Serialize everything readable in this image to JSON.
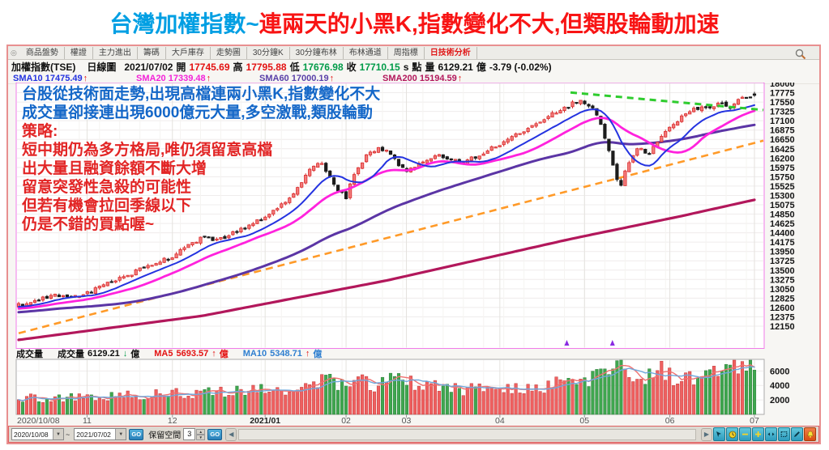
{
  "title": {
    "part1": "台灣加權指數~",
    "part2": "連兩天的小黑K,指數變化不大,但類股輪動加速"
  },
  "colors": {
    "title_blue": "#009FE3",
    "title_red": "#F81414",
    "up_red": "#D92B2B",
    "up_fill": "#F27979",
    "down_black": "#1C1C1C",
    "sma10": "#2433E0",
    "sma20": "#FF22DD",
    "sma60": "#5B35A5",
    "sma200": "#B2175B",
    "vol_up": "#EF6060",
    "vol_down": "#3FA74F",
    "vol_ma5": "#F07070",
    "vol_ma10": "#6FA8DC",
    "trend_orange": "#FF9A28",
    "trend_green": "#2ECC2E",
    "pane_border": "#F07CE8"
  },
  "tabs": {
    "items": [
      "商品盤勢",
      "權證",
      "主力進出",
      "籌碼",
      "大戶庫存",
      "走勢圖",
      "30分鐘K",
      "30分鐘布林",
      "布林通道",
      "周指標",
      "日技術分析"
    ],
    "active_index": 10
  },
  "header": {
    "instrument": "加權指數(TSE)",
    "period": "日線圖",
    "date": "2021/07/02",
    "open_label": "開",
    "open": "17745.69",
    "high_label": "高",
    "high": "17795.88",
    "low_label": "低",
    "low": "17676.98",
    "close_label": "收",
    "close": "17710.15",
    "close_flag": "s",
    "point_label": "點",
    "volume_label": "量",
    "volume": "6129.21",
    "volume_unit": "億",
    "change": "-3.79 (-0.02%)"
  },
  "sma_row": [
    {
      "label": "SMA10",
      "value": "17475.49",
      "arrow": "↑"
    },
    {
      "label": "SMA20",
      "value": "17339.48",
      "arrow": "↑"
    },
    {
      "label": "SMA60",
      "value": "17000.19",
      "arrow": "↑"
    },
    {
      "label": "SMA200",
      "value": "15194.59",
      "arrow": "↑"
    }
  ],
  "annotation": {
    "lines": [
      {
        "text": "台股從技術面走勢,出現高檔連兩小黑K,指數變化不大",
        "color": "blue"
      },
      {
        "text": "成交量卻接連出現6000億元大量,多空激戰,類股輪動",
        "color": "blue"
      },
      {
        "text": "策略:",
        "color": "red"
      },
      {
        "text": "短中期仍為多方格局,唯仍須留意高檔",
        "color": "red"
      },
      {
        "text": "出大量且融資餘額不斷大增",
        "color": "red"
      },
      {
        "text": "留意突發性急殺的可能性",
        "color": "red"
      },
      {
        "text": "但若有機會拉回季線以下",
        "color": "red"
      },
      {
        "text": "仍是不錯的買點喔~",
        "color": "red"
      }
    ]
  },
  "volume_header": {
    "pane_label": "成交量",
    "vol_label": "成交量",
    "vol_value": "6129.21",
    "vol_arrow": "↓",
    "vol_unit": "億",
    "ma5_label": "MA5",
    "ma5_value": "5693.57",
    "ma5_arrow": "↑",
    "ma5_unit": "億",
    "ma10_label": "MA10",
    "ma10_value": "5348.71",
    "ma10_arrow": "↑",
    "ma10_unit": "億"
  },
  "status_bar": {
    "date_from": "2020/10/08",
    "tilde": "~",
    "date_to": "2021/07/02",
    "go_label": "GO",
    "reserve_label": "保留空間",
    "reserve_value": "3",
    "icons": [
      "cursor-icon",
      "clock-icon",
      "zoom-out-icon",
      "zoom-in-icon",
      "pan-icon",
      "select-area-icon",
      "pencil-icon",
      "alert-bell-icon"
    ]
  },
  "chart_data": {
    "type": "candlestick+volume",
    "title": "加權指數(TSE) 日線圖",
    "x_range": [
      "2020/10/08",
      "2021/07/02"
    ],
    "y_axis": {
      "max": 18000,
      "min": 12150,
      "step": 225
    },
    "volume_axis": {
      "ticks": [
        2000,
        4000,
        6000
      ],
      "max": 7600,
      "unit": "億"
    },
    "n_candles": 183,
    "x_labels": [
      {
        "t": 0.0,
        "label": "2020/10/08",
        "bold": false
      },
      {
        "t": 0.093,
        "label": "11",
        "bold": false
      },
      {
        "t": 0.209,
        "label": "12",
        "bold": false
      },
      {
        "t": 0.335,
        "label": "2021/01",
        "bold": true
      },
      {
        "t": 0.445,
        "label": "02",
        "bold": false
      },
      {
        "t": 0.527,
        "label": "03",
        "bold": false
      },
      {
        "t": 0.654,
        "label": "04",
        "bold": false
      },
      {
        "t": 0.769,
        "label": "05",
        "bold": false
      },
      {
        "t": 0.885,
        "label": "06",
        "bold": false
      },
      {
        "t": 1.0,
        "label": "07",
        "bold": false
      }
    ],
    "pre_history_anchors": [
      [
        -0.33,
        12150
      ],
      [
        -0.26,
        12420
      ],
      [
        -0.2,
        12680
      ],
      [
        -0.14,
        12380
      ],
      [
        -0.08,
        12520
      ],
      [
        -0.03,
        12600
      ]
    ],
    "price_path_anchors": [
      [
        0.0,
        12660
      ],
      [
        0.02,
        12740
      ],
      [
        0.045,
        12900
      ],
      [
        0.065,
        12820
      ],
      [
        0.093,
        12950
      ],
      [
        0.115,
        13120
      ],
      [
        0.14,
        13320
      ],
      [
        0.165,
        13520
      ],
      [
        0.19,
        13680
      ],
      [
        0.209,
        13830
      ],
      [
        0.23,
        14080
      ],
      [
        0.25,
        14280
      ],
      [
        0.27,
        14210
      ],
      [
        0.29,
        14380
      ],
      [
        0.315,
        14580
      ],
      [
        0.335,
        14780
      ],
      [
        0.355,
        15020
      ],
      [
        0.375,
        15350
      ],
      [
        0.395,
        15880
      ],
      [
        0.405,
        16120
      ],
      [
        0.415,
        15980
      ],
      [
        0.425,
        15650
      ],
      [
        0.435,
        15380
      ],
      [
        0.445,
        15260
      ],
      [
        0.455,
        15780
      ],
      [
        0.47,
        16200
      ],
      [
        0.49,
        16480
      ],
      [
        0.505,
        16280
      ],
      [
        0.52,
        15980
      ],
      [
        0.527,
        15900
      ],
      [
        0.545,
        16080
      ],
      [
        0.565,
        16280
      ],
      [
        0.585,
        16180
      ],
      [
        0.605,
        16080
      ],
      [
        0.625,
        16280
      ],
      [
        0.64,
        16430
      ],
      [
        0.654,
        16480
      ],
      [
        0.67,
        16680
      ],
      [
        0.69,
        16920
      ],
      [
        0.71,
        17120
      ],
      [
        0.73,
        17310
      ],
      [
        0.75,
        17480
      ],
      [
        0.762,
        17620
      ],
      [
        0.769,
        17540
      ],
      [
        0.78,
        17420
      ],
      [
        0.79,
        17120
      ],
      [
        0.8,
        16480
      ],
      [
        0.81,
        15850
      ],
      [
        0.817,
        15480
      ],
      [
        0.825,
        15950
      ],
      [
        0.835,
        16280
      ],
      [
        0.845,
        16480
      ],
      [
        0.855,
        16280
      ],
      [
        0.865,
        16520
      ],
      [
        0.875,
        16720
      ],
      [
        0.885,
        16920
      ],
      [
        0.9,
        17180
      ],
      [
        0.915,
        17330
      ],
      [
        0.93,
        17470
      ],
      [
        0.942,
        17380
      ],
      [
        0.955,
        17530
      ],
      [
        0.968,
        17440
      ],
      [
        0.98,
        17620
      ],
      [
        0.99,
        17700
      ],
      [
        1.0,
        17720
      ]
    ],
    "volume_path_anchors": [
      [
        0.0,
        2350
      ],
      [
        0.05,
        2250
      ],
      [
        0.1,
        2400
      ],
      [
        0.15,
        2550
      ],
      [
        0.2,
        2750
      ],
      [
        0.25,
        2950
      ],
      [
        0.3,
        3150
      ],
      [
        0.35,
        3450
      ],
      [
        0.4,
        4250
      ],
      [
        0.44,
        4500
      ],
      [
        0.48,
        4300
      ],
      [
        0.52,
        4600
      ],
      [
        0.56,
        3950
      ],
      [
        0.6,
        3450
      ],
      [
        0.64,
        3300
      ],
      [
        0.68,
        3600
      ],
      [
        0.72,
        4050
      ],
      [
        0.76,
        4550
      ],
      [
        0.79,
        5150
      ],
      [
        0.815,
        7200
      ],
      [
        0.83,
        6300
      ],
      [
        0.85,
        5600
      ],
      [
        0.87,
        5850
      ],
      [
        0.89,
        5450
      ],
      [
        0.91,
        5150
      ],
      [
        0.93,
        4850
      ],
      [
        0.95,
        5500
      ],
      [
        0.97,
        6200
      ],
      [
        0.985,
        6450
      ],
      [
        1.0,
        6129
      ]
    ],
    "sma200_anchors": [
      [
        0,
        11820
      ],
      [
        0.25,
        12400
      ],
      [
        0.5,
        13250
      ],
      [
        0.75,
        14250
      ],
      [
        0.9,
        14800
      ],
      [
        1.0,
        15194.59
      ]
    ],
    "sma_targets": {
      "sma10": 17475.49,
      "sma20": 17339.48,
      "sma60": 17000.19,
      "sma200": 15194.59
    },
    "last_candle": {
      "open": 17745.69,
      "high": 17795.88,
      "low": 17676.98,
      "close": 17710.15
    },
    "last_volume": 6129.21,
    "trendlines": [
      {
        "name": "support-trendline",
        "style": "dashed",
        "color_key": "trend_orange",
        "from": [
          0.0,
          11980
        ],
        "to_price": 16620
      },
      {
        "name": "resistance-trendline",
        "style": "dashed",
        "color_key": "trend_green",
        "from": [
          0.75,
          17780
        ],
        "to_price": 17360
      }
    ],
    "signal_markers": [
      {
        "t": 0.745
      },
      {
        "t": 0.807
      }
    ]
  }
}
